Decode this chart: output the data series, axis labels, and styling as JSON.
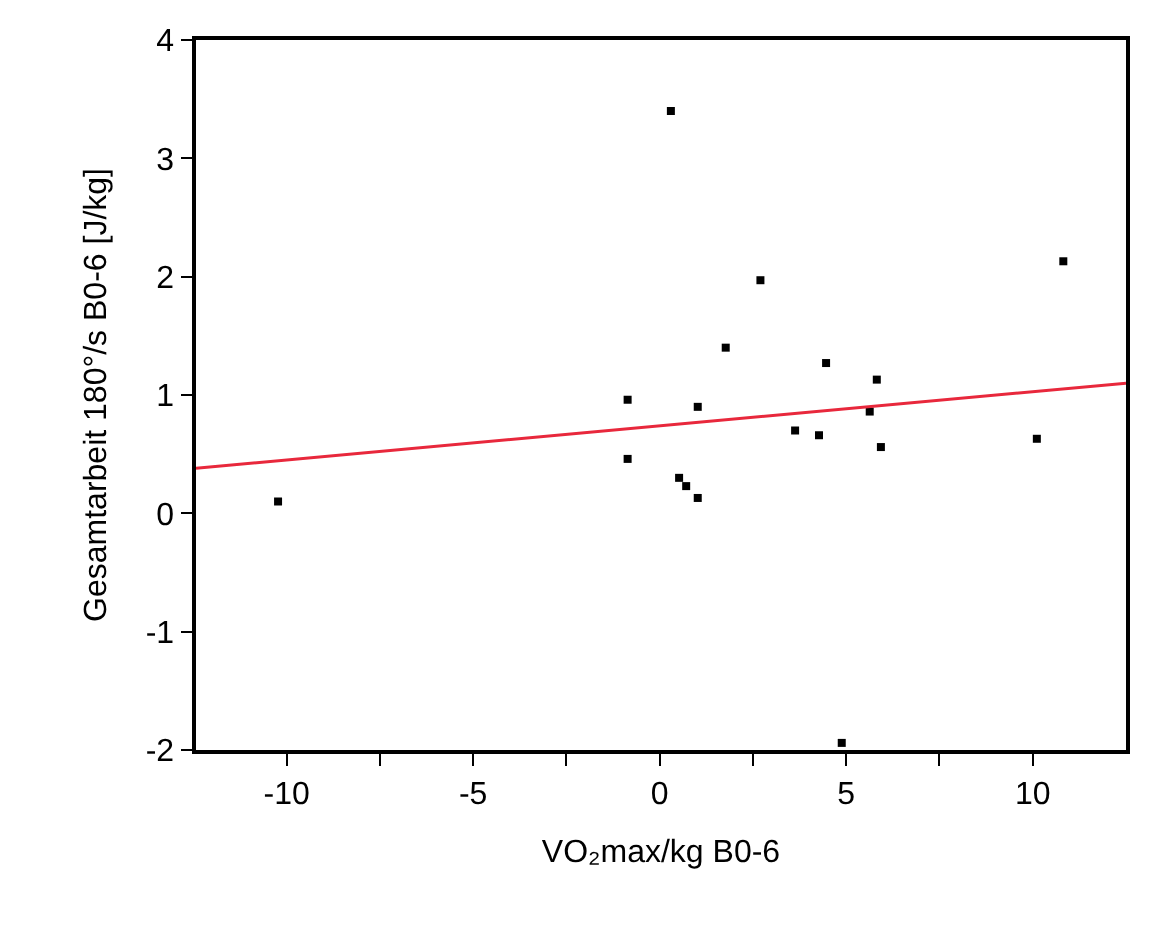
{
  "chart_data": {
    "type": "scatter",
    "xlabel": "VO₂max/kg B0-6",
    "ylabel": "Gesamtarbeit 180°/s B0-6 [J/kg]",
    "xlim": [
      -12.43,
      12.5
    ],
    "ylim": [
      -2,
      4
    ],
    "xticks": [
      -10,
      {
        "value": -7.5,
        "label": null
      },
      -5,
      {
        "value": -2.5,
        "label": null
      },
      0,
      {
        "value": 2.5,
        "label": null
      },
      5,
      {
        "value": 7.5,
        "label": null
      },
      10
    ],
    "yticks": [
      -2,
      -1,
      0,
      1,
      2,
      3,
      4
    ],
    "grid": false,
    "legend": false,
    "series": [
      {
        "marker": "square",
        "color": "#000000",
        "x": [
          -10.23,
          0.3,
          -0.86,
          -0.86,
          0.52,
          0.71,
          1.02,
          1.02,
          1.77,
          2.7,
          3.63,
          4.27,
          4.46,
          5.63,
          5.82,
          5.93,
          4.88,
          10.11,
          10.82
        ],
        "values": [
          0.1,
          3.4,
          0.96,
          0.46,
          0.3,
          0.23,
          0.13,
          0.9,
          1.4,
          1.97,
          0.7,
          0.66,
          1.27,
          0.86,
          1.13,
          0.56,
          -1.94,
          0.63,
          2.13
        ]
      },
      {
        "type": "line",
        "color": "#e8283c",
        "x": [
          -12.43,
          12.5
        ],
        "values": [
          0.38,
          1.1
        ]
      }
    ]
  }
}
